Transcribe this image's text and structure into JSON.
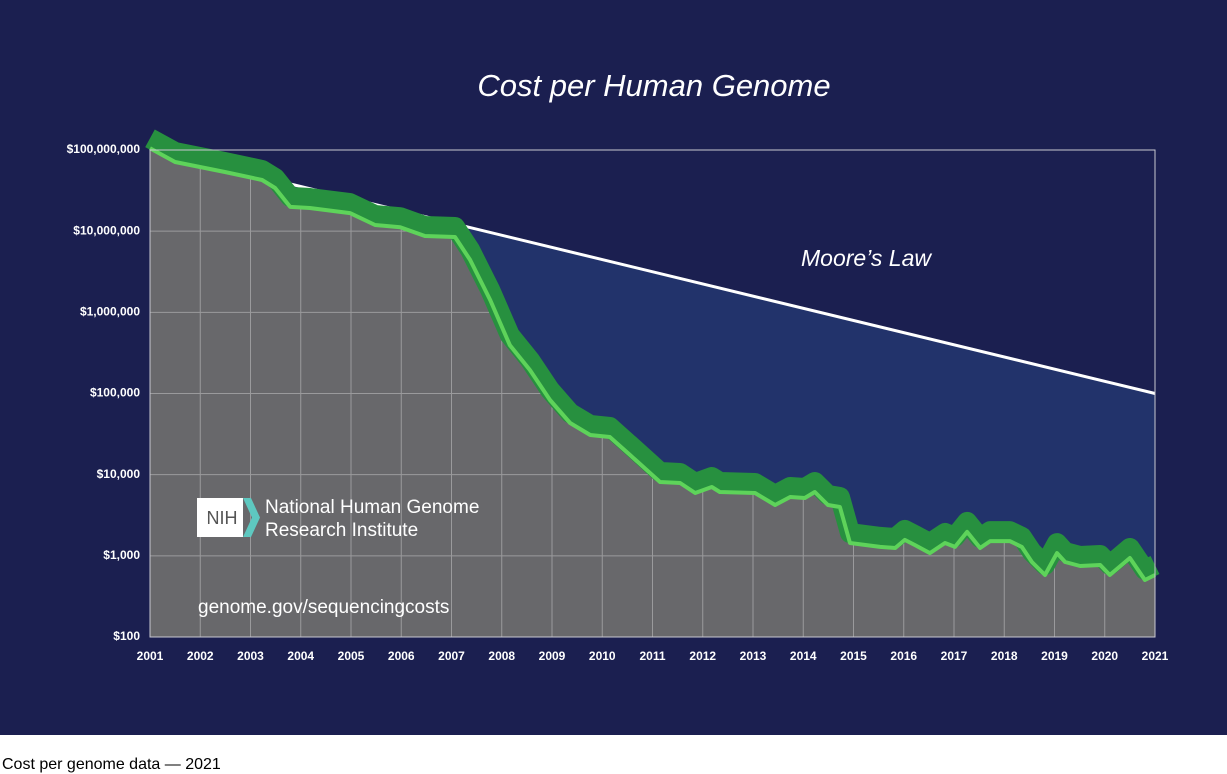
{
  "chart_data": {
    "type": "area",
    "title": "Cost per Human Genome",
    "log_y": true,
    "grid": true,
    "xlim": [
      2001,
      2021
    ],
    "xticks": [
      2001,
      2002,
      2003,
      2004,
      2005,
      2006,
      2007,
      2008,
      2009,
      2010,
      2011,
      2012,
      2013,
      2014,
      2015,
      2016,
      2017,
      2018,
      2019,
      2020,
      2021
    ],
    "ylim": [
      100,
      100000000
    ],
    "yticks": [
      {
        "value": 100,
        "label": "$100"
      },
      {
        "value": 1000,
        "label": "$1,000"
      },
      {
        "value": 10000,
        "label": "$10,000"
      },
      {
        "value": 100000,
        "label": "$100,000"
      },
      {
        "value": 1000000,
        "label": "$1,000,000"
      },
      {
        "value": 10000000,
        "label": "$10,000,000"
      },
      {
        "value": 100000000,
        "label": "$100,000,000"
      }
    ],
    "series": [
      {
        "color": "#5ed35a",
        "fill": "#68686b",
        "x": [
          2001,
          2001.5,
          2002.49,
          2003.23,
          2003.49,
          2003.79,
          2004.18,
          2004.98,
          2005.48,
          2005.98,
          2006.47,
          2007.07,
          2007.37,
          2007.77,
          2008.16,
          2008.56,
          2008.96,
          2009.36,
          2009.76,
          2010.15,
          2010.55,
          2011.15,
          2011.55,
          2011.85,
          2012.18,
          2012.34,
          2013.04,
          2013.44,
          2013.74,
          2014.03,
          2014.23,
          2014.49,
          2014.73,
          2014.93,
          2015.53,
          2015.83,
          2016.02,
          2016.22,
          2016.52,
          2016.82,
          2017.02,
          2017.26,
          2017.52,
          2017.72,
          2018.11,
          2018.35,
          2018.55,
          2018.81,
          2019.05,
          2019.21,
          2019.51,
          2019.91,
          2020.1,
          2020.5,
          2020.8,
          2021
        ],
        "values": [
          105000000,
          71100000,
          53600000,
          42700000,
          34000000,
          19900000,
          19300000,
          16700000,
          11900000,
          11200000,
          8710000,
          8470000,
          4420000,
          1420000,
          395000,
          195000,
          83200,
          43300,
          30800,
          29100,
          17500,
          8120,
          7890,
          5940,
          7050,
          6110,
          5940,
          4230,
          5310,
          5160,
          6110,
          4230,
          4000,
          1440,
          1290,
          1250,
          1570,
          1360,
          1080,
          1440,
          1290,
          1970,
          1250,
          1520,
          1520,
          1290,
          840,
          581,
          1080,
          840,
          750,
          771,
          581,
          940,
          504,
          581
        ]
      },
      {
        "name": "Moore’s Law",
        "color": "#ffffff",
        "fill": "#22336b",
        "x": [
          2001,
          2021
        ],
        "values": [
          100000000,
          100000
        ]
      }
    ],
    "logo": {
      "abbr": "NIH",
      "lines": [
        "National Human Genome",
        "Research Institute"
      ]
    },
    "source_url": "genome.gov/sequencingcosts"
  },
  "caption": "Cost per genome data — 2021"
}
